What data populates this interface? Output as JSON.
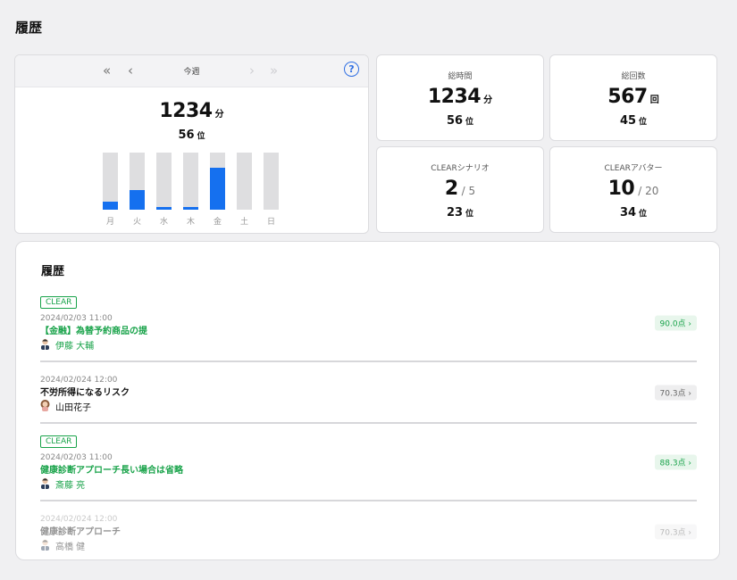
{
  "page_title": "履歴",
  "week": {
    "nav_label": "今週",
    "total_minutes": "1234",
    "minutes_unit": "分",
    "rank": "56",
    "rank_unit": "位",
    "days": [
      {
        "label": "月",
        "fill": 0.14
      },
      {
        "label": "火",
        "fill": 0.35
      },
      {
        "label": "水",
        "fill": 0.05
      },
      {
        "label": "木",
        "fill": 0.05
      },
      {
        "label": "金",
        "fill": 0.73
      },
      {
        "label": "土",
        "fill": 0
      },
      {
        "label": "日",
        "fill": 0
      }
    ]
  },
  "stats": {
    "total_time": {
      "label": "総時間",
      "value": "1234",
      "unit": "分",
      "rank": "56",
      "rank_unit": "位"
    },
    "total_count": {
      "label": "総回数",
      "value": "567",
      "unit": "回",
      "rank": "45",
      "rank_unit": "位"
    },
    "clear_scenario": {
      "label": "CLEARシナリオ",
      "value": "2",
      "total": "/ 5",
      "rank": "23",
      "rank_unit": "位"
    },
    "clear_avatar": {
      "label": "CLEARアバター",
      "value": "10",
      "total": "/ 20",
      "rank": "34",
      "rank_unit": "位"
    }
  },
  "history": {
    "title": "履歴",
    "items": [
      {
        "badge": "CLEAR",
        "date": "2024/02/03 11:00",
        "title": "【金融】為替予約商品の提",
        "user": "伊藤 大輔",
        "score": "90.0点 ›"
      },
      {
        "badge": "",
        "date": "2024/02/024 12:00",
        "title": "不労所得になるリスク",
        "user": "山田花子",
        "score": "70.3点 ›"
      },
      {
        "badge": "CLEAR",
        "date": "2024/02/03 11:00",
        "title": "健康診断アプローチ長い場合は省略",
        "user": "斎藤 亮",
        "score": "88.3点 ›"
      },
      {
        "badge": "",
        "date": "2024/02/024 12:00",
        "title": "健康診断アプローチ",
        "user": "高橋 健",
        "score": "70.3点 ›"
      }
    ]
  },
  "colors": {
    "accent": "#1570ef",
    "clear_green": "#19a34a"
  }
}
